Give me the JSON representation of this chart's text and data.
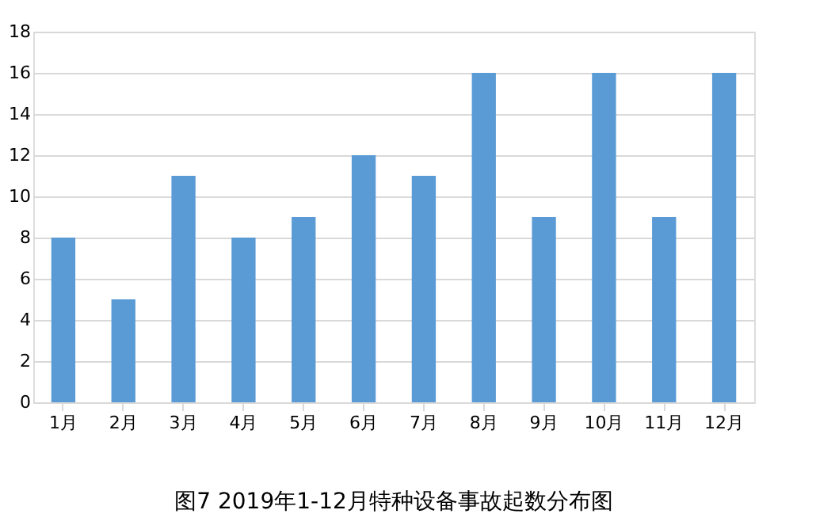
{
  "chart_data": {
    "type": "bar",
    "title": "图7 2019年1-12月特种设备事故起数分布图",
    "categories": [
      "1月",
      "2月",
      "3月",
      "4月",
      "5月",
      "6月",
      "7月",
      "8月",
      "9月",
      "10月",
      "11月",
      "12月"
    ],
    "values": [
      8,
      5,
      11,
      8,
      9,
      12,
      11,
      16,
      9,
      16,
      9,
      16
    ],
    "color": "#5b9bd5",
    "ylim": [
      0,
      18
    ],
    "yticks": [
      0,
      2,
      4,
      6,
      8,
      10,
      12,
      14,
      16,
      18
    ],
    "grid": "y"
  }
}
